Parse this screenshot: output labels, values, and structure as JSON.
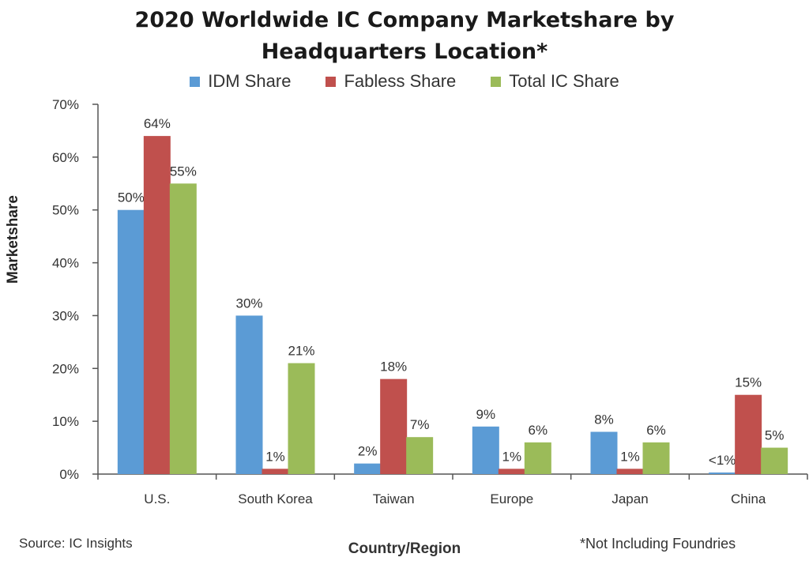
{
  "chart_data": {
    "type": "bar",
    "title_line1": "2020 Worldwide IC Company Marketshare by",
    "title_line2": "Headquarters Location*",
    "xlabel": "Country/Region",
    "ylabel": "Marketshare",
    "ylim": [
      0,
      70
    ],
    "yticks": [
      "0%",
      "10%",
      "20%",
      "30%",
      "40%",
      "50%",
      "60%",
      "70%"
    ],
    "categories": [
      "U.S.",
      "South Korea",
      "Taiwan",
      "Europe",
      "Japan",
      "China"
    ],
    "series": [
      {
        "name": "IDM Share",
        "color": "#5b9bd5",
        "values": [
          50,
          30,
          2,
          9,
          8,
          0.3
        ],
        "labels": [
          "50%",
          "30%",
          "2%",
          "9%",
          "8%",
          "<1%"
        ]
      },
      {
        "name": "Fabless Share",
        "color": "#c0504d",
        "values": [
          64,
          1,
          18,
          1,
          1,
          15
        ],
        "labels": [
          "64%",
          "1%",
          "18%",
          "1%",
          "1%",
          "15%"
        ]
      },
      {
        "name": "Total IC Share",
        "color": "#9bbb59",
        "values": [
          55,
          21,
          7,
          6,
          6,
          5
        ],
        "labels": [
          "55%",
          "21%",
          "7%",
          "6%",
          "6%",
          "5%"
        ]
      }
    ],
    "legend_position": "top"
  },
  "footer": {
    "source": "Source: IC Insights",
    "note": "*Not Including Foundries"
  }
}
